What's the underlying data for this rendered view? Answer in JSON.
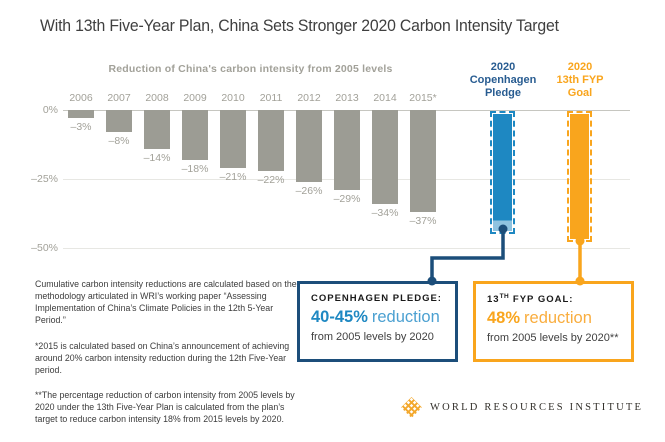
{
  "title": "With 13th Five-Year Plan, China Sets Stronger 2020 Carbon Intensity Target",
  "chart_data": {
    "type": "bar",
    "title": "Reduction of China's carbon intensity from 2005 levels",
    "categories": [
      "2006",
      "2007",
      "2008",
      "2009",
      "2010",
      "2011",
      "2012",
      "2013",
      "2014",
      "2015*"
    ],
    "values": [
      -3,
      -8,
      -14,
      -18,
      -21,
      -22,
      -26,
      -29,
      -34,
      -37
    ],
    "ylim": [
      0,
      -50
    ],
    "grid": "horizontal",
    "yticks": [
      {
        "label": "0%",
        "value": 0
      },
      {
        "label": "–25%",
        "value": -25
      },
      {
        "label": "–50%",
        "value": -50
      }
    ],
    "targets": [
      {
        "id": "copenhagen",
        "header_lines": [
          "2020",
          "Copenhagen",
          "Pledge"
        ],
        "range": [
          -40,
          -45
        ],
        "color_key": "blue"
      },
      {
        "id": "fyp",
        "header_lines": [
          "2020",
          "13th FYP",
          "Goal"
        ],
        "value": -48,
        "color_key": "orange"
      }
    ]
  },
  "callouts": {
    "copenhagen": {
      "heading": "COPENHAGEN PLEDGE:",
      "value": "40-45%",
      "unit_word": "reduction",
      "sub": "from 2005 levels by 2020"
    },
    "fyp": {
      "heading_num": "13",
      "heading_sup": "TH",
      "heading_rest": " FYP GOAL:",
      "value": "48%",
      "unit_word": "reduction",
      "sub": "from 2005 levels by 2020**"
    }
  },
  "footnotes": [
    "Cumulative carbon intensity reductions are calculated based on the methodology articulated in WRI’s working paper “Assessing Implementation of China’s Climate Policies in the 12th 5-Year Period.”",
    "*2015 is calculated based on China’s announcement of achieving around 20% carbon intensity reduction during the 12th Five-Year period.",
    "**The percentage reduction of carbon intensity from 2005 levels by 2020 under the 13th Five-Year Plan is calculated from the plan’s target to reduce carbon intensity 18% from 2015 levels by 2020."
  ],
  "logo": {
    "text": "WORLD RESOURCES INSTITUTE"
  },
  "colors": {
    "bar_gray": "#9c9c94",
    "label_gray": "#a2a199",
    "grid": "#e7e7e3",
    "zero_line": "#c6c6c0",
    "blue": "#1e88c2",
    "light_blue": "#8fc3e0",
    "mid_blue": "#4ba0d1",
    "header_blue": "#285c91",
    "navy": "#1c4e7a",
    "orange": "#f9a51d",
    "mid_orange": "#f9ad3e",
    "text_dark": "#3f3f3f",
    "black": "#1a1a1a",
    "logo_gold": "#f3a82c"
  }
}
